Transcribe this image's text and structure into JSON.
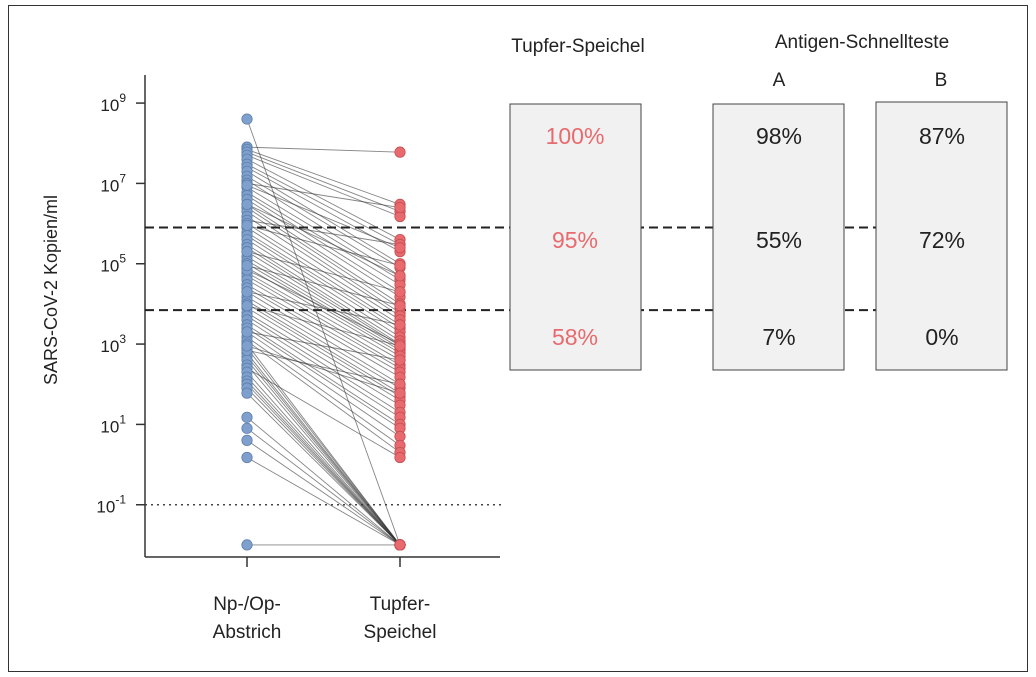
{
  "chart_data": {
    "type": "scatter",
    "subtype": "paired-dot-plot",
    "y_scale": "log",
    "ylabel": "SARS-CoV-2 Kopien/ml",
    "ylim": [
      0.005,
      5000000000
    ],
    "y_ticks": [
      {
        "base": "10",
        "exp": "9",
        "value": 1000000000
      },
      {
        "base": "10",
        "exp": "7",
        "value": 10000000
      },
      {
        "base": "10",
        "exp": "5",
        "value": 100000
      },
      {
        "base": "10",
        "exp": "3",
        "value": 1000
      },
      {
        "base": "10",
        "exp": "1",
        "value": 10
      },
      {
        "base": "10",
        "exp": "-1",
        "value": 0.1
      }
    ],
    "categories": [
      {
        "line1": "Np-/Op-",
        "line2": "Abstrich"
      },
      {
        "line1": "Tupfer-",
        "line2": "Speichel"
      }
    ],
    "series_colors": [
      "#7f9fcd",
      "#e96a6e"
    ],
    "detection_limit": 0.1,
    "threshold_lines": [
      800000,
      7000
    ],
    "pairs": [
      [
        400000000,
        0.01
      ],
      [
        80000000,
        60000000
      ],
      [
        70000000,
        3000000
      ],
      [
        60000000,
        2000000
      ],
      [
        50000000,
        1500000
      ],
      [
        40000000,
        400000
      ],
      [
        30000000,
        300000
      ],
      [
        25000000,
        200000
      ],
      [
        20000000,
        100000
      ],
      [
        15000000,
        80000
      ],
      [
        12000000,
        50000
      ],
      [
        10000000,
        2500000
      ],
      [
        8000000,
        40000
      ],
      [
        6000000,
        30000
      ],
      [
        5000000,
        20000
      ],
      [
        4000000,
        15000
      ],
      [
        3000000,
        10000
      ],
      [
        2500000,
        8000
      ],
      [
        2000000,
        6000
      ],
      [
        1500000,
        5000
      ],
      [
        1200000,
        300000
      ],
      [
        1000000,
        4000
      ],
      [
        800000,
        3000
      ],
      [
        600000,
        2500
      ],
      [
        500000,
        2000
      ],
      [
        400000,
        1500
      ],
      [
        300000,
        1200
      ],
      [
        250000,
        1000
      ],
      [
        200000,
        900
      ],
      [
        150000,
        800
      ],
      [
        120000,
        700
      ],
      [
        100000,
        600
      ],
      [
        80000,
        500
      ],
      [
        60000,
        400
      ],
      [
        50000,
        300
      ],
      [
        40000,
        250
      ],
      [
        30000,
        200
      ],
      [
        25000,
        150
      ],
      [
        20000,
        100
      ],
      [
        15000,
        80
      ],
      [
        12000,
        60
      ],
      [
        10000,
        50
      ],
      [
        8000,
        40
      ],
      [
        6000,
        30
      ],
      [
        5000,
        20
      ],
      [
        4000,
        15
      ],
      [
        3000,
        10
      ],
      [
        2500,
        8
      ],
      [
        2000,
        5
      ],
      [
        1500,
        3
      ],
      [
        1200,
        2
      ],
      [
        1000,
        0.01
      ],
      [
        800,
        0.01
      ],
      [
        600,
        0.01
      ],
      [
        500,
        0.01
      ],
      [
        400,
        0.01
      ],
      [
        300,
        0.01
      ],
      [
        250,
        1.5
      ],
      [
        200,
        0.01
      ],
      [
        150,
        0.01
      ],
      [
        120,
        0.01
      ],
      [
        100,
        0.01
      ],
      [
        80,
        0.01
      ],
      [
        60,
        0.01
      ],
      [
        15,
        0.01
      ],
      [
        8,
        0.01
      ],
      [
        4,
        0.01
      ],
      [
        1.5,
        0.01
      ],
      [
        0.01,
        0.01
      ],
      [
        3000000,
        50000
      ],
      [
        200000,
        20000
      ],
      [
        20000,
        3000
      ],
      [
        2000,
        400
      ],
      [
        70000,
        1000
      ],
      [
        700,
        100
      ],
      [
        9000000,
        250000
      ],
      [
        900000,
        90000
      ],
      [
        90000,
        9000
      ],
      [
        9000,
        900
      ],
      [
        900,
        60
      ]
    ]
  },
  "summary_table": {
    "group1_title": "Tupfer-Speichel",
    "group2_title": "Antigen-Schnellteste",
    "col_a": "A",
    "col_b": "B",
    "saliva": [
      "100%",
      "95%",
      "58%"
    ],
    "a": [
      "98%",
      "55%",
      "7%"
    ],
    "b": [
      "87%",
      "72%",
      "0%"
    ],
    "saliva_color": "#e96a6e",
    "text_color": "#222222",
    "box_fill": "#f1f1f1"
  }
}
